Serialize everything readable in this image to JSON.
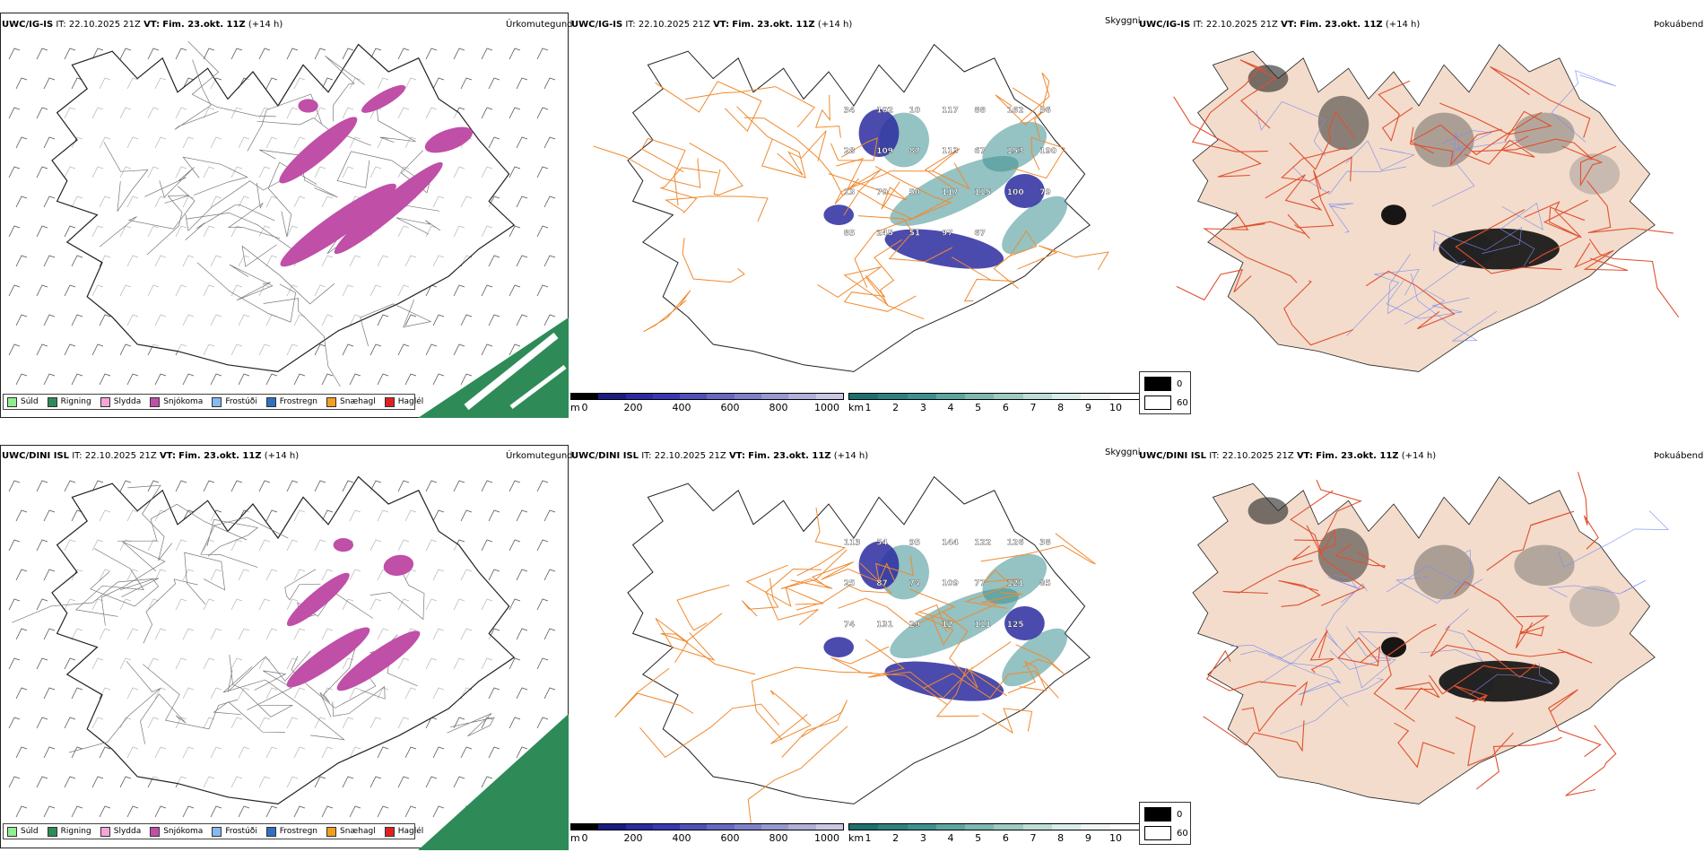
{
  "rows": [
    {
      "model": "UWC/IG-IS",
      "issue_label": "IT:",
      "issue_time": "22.10.2025 21Z",
      "valid_label": "VT:",
      "valid_time": "Fim. 23.okt. 11Z",
      "lead": "(+14 h)",
      "precip_title": "Úrkomutegund",
      "cloud_title": "Skyggni",
      "fog_title": "Þokuábendi"
    },
    {
      "model": "UWC/DINI ISL",
      "issue_label": "IT:",
      "issue_time": "22.10.2025 21Z",
      "valid_label": "VT:",
      "valid_time": "Fim. 23.okt. 11Z",
      "lead": "(+14 h)",
      "precip_title": "Úrkomutegund",
      "cloud_title": "Skyggni",
      "fog_title": "Þokuábendi"
    }
  ],
  "precip_legend": [
    {
      "label": "Súld",
      "color": "#90ee90"
    },
    {
      "label": "Rigning",
      "color": "#2e8b57"
    },
    {
      "label": "Slydda",
      "color": "#f4a6d7"
    },
    {
      "label": "Snjókoma",
      "color": "#c04fa8"
    },
    {
      "label": "Frostúði",
      "color": "#87b8f0"
    },
    {
      "label": "Frostregn",
      "color": "#3070c0"
    },
    {
      "label": "Snæhagl",
      "color": "#f0a020"
    },
    {
      "label": "Haglél",
      "color": "#e02020"
    }
  ],
  "ceiling_bar": {
    "unit": "m",
    "ticks": [
      "0",
      "200",
      "400",
      "600",
      "800",
      "1000"
    ],
    "colors": [
      "#000000",
      "#1c1c80",
      "#2b2ba0",
      "#3838b0",
      "#5050b8",
      "#6868c0",
      "#8080c8",
      "#9898d0",
      "#b0b0d8",
      "#c8c8e4"
    ]
  },
  "visibility_bar": {
    "unit": "km",
    "ticks": [
      "1",
      "2",
      "3",
      "4",
      "5",
      "6",
      "7",
      "8",
      "9",
      "10"
    ],
    "colors": [
      "#1e7070",
      "#2e8080",
      "#3e9090",
      "#5ea4a0",
      "#7eb8b0",
      "#9ecac4",
      "#bedcd6",
      "#d8ecea",
      "#eef6f4",
      "#ffffff"
    ]
  },
  "fog_legend": {
    "items": [
      {
        "label": "0",
        "color": "#000000"
      },
      {
        "label": "60",
        "color": "#ffffff"
      }
    ]
  },
  "ceiling_labels": [
    [
      "34",
      "102",
      "10",
      "117",
      "88",
      "162",
      "56",
      "28",
      "109",
      "87",
      "113",
      "67",
      "153",
      "190",
      "13",
      "70",
      "50",
      "117",
      "115",
      "100",
      "79",
      "85",
      "245",
      "51",
      "97",
      "67"
    ],
    [
      "113",
      "54",
      "95",
      "144",
      "122",
      "126",
      "38",
      "25",
      "87",
      "74",
      "109",
      "77",
      "121",
      "85",
      "74",
      "131",
      "29",
      "12",
      "111",
      "125"
    ]
  ],
  "map_colors": {
    "precip_snow": "#c04fa8",
    "precip_rain": "#2e8b57",
    "roads_orange": "#f08a30",
    "roads_red": "#e05030",
    "land_beige": "#f3dccb",
    "rivers_blue": "#7b8cf0",
    "ceiling_blue": "#2b2ba0",
    "visibility_teal": "#3e9090"
  }
}
